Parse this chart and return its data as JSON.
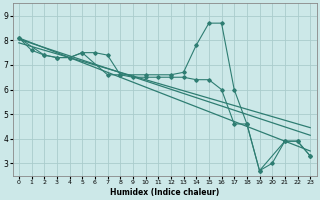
{
  "xlabel": "Humidex (Indice chaleur)",
  "bg_color": "#cce8e8",
  "grid_color": "#aacccc",
  "line_color": "#2e7d72",
  "xlim": [
    -0.5,
    23.5
  ],
  "ylim": [
    2.5,
    9.5
  ],
  "yticks": [
    3,
    4,
    5,
    6,
    7,
    8,
    9
  ],
  "xticks": [
    0,
    1,
    2,
    3,
    4,
    5,
    6,
    7,
    8,
    9,
    10,
    11,
    12,
    13,
    14,
    15,
    16,
    17,
    18,
    19,
    20,
    21,
    22,
    23
  ],
  "series": [
    {
      "x": [
        0,
        1,
        2,
        3,
        4,
        5,
        6,
        7,
        8,
        9,
        10,
        11,
        12,
        13,
        14,
        15,
        16,
        17,
        18,
        19,
        20,
        21,
        22,
        23
      ],
      "y": [
        8.1,
        7.9,
        7.7,
        7.5,
        7.3,
        7.1,
        6.9,
        6.7,
        6.5,
        6.3,
        6.1,
        5.9,
        5.7,
        5.5,
        5.3,
        5.1,
        4.9,
        4.7,
        4.5,
        4.3,
        4.1,
        3.9,
        3.7,
        3.5
      ],
      "has_markers": false
    },
    {
      "x": [
        0,
        1,
        2,
        3,
        4,
        5,
        6,
        7,
        8,
        9,
        10,
        11,
        12,
        13,
        14,
        15,
        16,
        17,
        18,
        19,
        20,
        21,
        22,
        23
      ],
      "y": [
        7.9,
        7.75,
        7.6,
        7.45,
        7.3,
        7.15,
        7.0,
        6.85,
        6.7,
        6.55,
        6.4,
        6.25,
        6.1,
        5.95,
        5.8,
        5.65,
        5.5,
        5.35,
        5.2,
        5.05,
        4.9,
        4.75,
        4.6,
        4.45
      ],
      "has_markers": false
    },
    {
      "x": [
        0,
        1,
        2,
        3,
        4,
        5,
        6,
        7,
        8,
        9,
        10,
        11,
        12,
        13,
        14,
        15,
        16,
        17,
        18,
        19,
        20,
        21,
        22,
        23
      ],
      "y": [
        8.05,
        7.88,
        7.71,
        7.54,
        7.37,
        7.2,
        7.03,
        6.86,
        6.69,
        6.52,
        6.35,
        6.18,
        6.01,
        5.84,
        5.67,
        5.5,
        5.33,
        5.16,
        4.99,
        4.82,
        4.65,
        4.48,
        4.31,
        4.14
      ],
      "has_markers": false
    },
    {
      "x": [
        0,
        1,
        2,
        3,
        4,
        5,
        6,
        7,
        8,
        9,
        10,
        11,
        12,
        13,
        14,
        15,
        16,
        17,
        18,
        19,
        20,
        21,
        22,
        23
      ],
      "y": [
        8.1,
        7.6,
        7.4,
        7.3,
        7.3,
        7.5,
        7.5,
        7.4,
        6.6,
        6.5,
        6.5,
        6.5,
        6.5,
        6.5,
        6.4,
        6.4,
        6.0,
        4.6,
        4.6,
        2.7,
        3.0,
        3.9,
        3.9,
        3.3
      ],
      "has_markers": true
    },
    {
      "x": [
        0,
        2,
        3,
        4,
        5,
        7,
        8,
        10,
        12,
        13,
        14,
        15,
        16,
        17,
        18,
        19,
        21,
        22,
        23
      ],
      "y": [
        8.1,
        7.4,
        7.3,
        7.3,
        7.5,
        6.6,
        6.6,
        6.6,
        6.6,
        6.7,
        7.8,
        8.7,
        8.7,
        6.0,
        4.6,
        2.7,
        3.9,
        3.9,
        3.3
      ],
      "has_markers": true
    }
  ]
}
